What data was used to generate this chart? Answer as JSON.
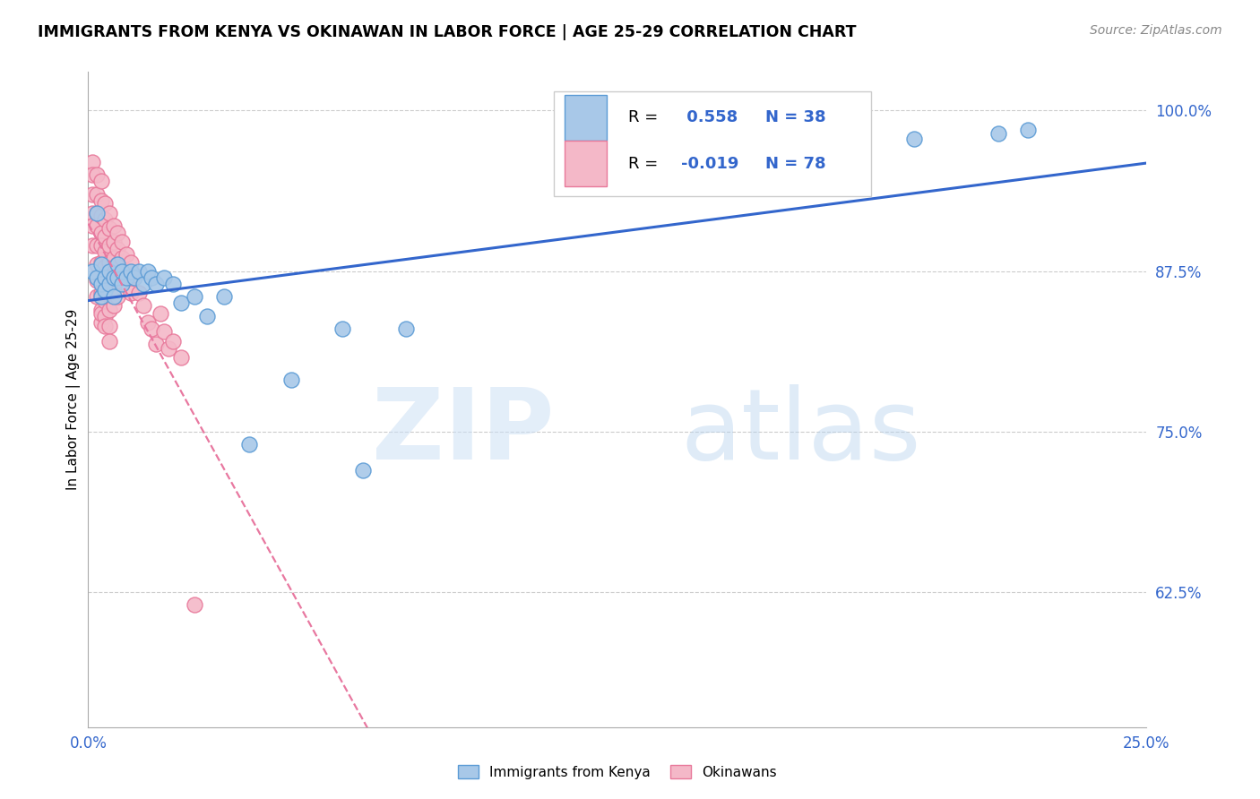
{
  "title": "IMMIGRANTS FROM KENYA VS OKINAWAN IN LABOR FORCE | AGE 25-29 CORRELATION CHART",
  "source": "Source: ZipAtlas.com",
  "ylabel": "In Labor Force | Age 25-29",
  "x_min": 0.0,
  "x_max": 0.25,
  "y_min": 0.52,
  "y_max": 1.03,
  "x_ticks": [
    0.0,
    0.05,
    0.1,
    0.15,
    0.2,
    0.25
  ],
  "x_tick_labels": [
    "0.0%",
    "",
    "",
    "",
    "",
    "25.0%"
  ],
  "y_ticks": [
    0.625,
    0.75,
    0.875,
    1.0
  ],
  "y_tick_labels": [
    "62.5%",
    "75.0%",
    "87.5%",
    "100.0%"
  ],
  "kenya_R": 0.558,
  "kenya_N": 38,
  "okinawa_R": -0.019,
  "okinawa_N": 78,
  "kenya_color": "#a8c8e8",
  "kenya_edge_color": "#5b9bd5",
  "okinawa_color": "#f4b8c8",
  "okinawa_edge_color": "#e8789a",
  "trend_kenya_color": "#3366cc",
  "trend_okinawa_color": "#e878a0",
  "kenya_x": [
    0.001,
    0.002,
    0.002,
    0.003,
    0.003,
    0.003,
    0.004,
    0.004,
    0.005,
    0.005,
    0.006,
    0.006,
    0.007,
    0.007,
    0.008,
    0.008,
    0.009,
    0.01,
    0.011,
    0.012,
    0.013,
    0.014,
    0.015,
    0.016,
    0.018,
    0.02,
    0.022,
    0.025,
    0.028,
    0.032,
    0.038,
    0.048,
    0.06,
    0.065,
    0.075,
    0.195,
    0.215,
    0.222
  ],
  "kenya_y": [
    0.875,
    0.87,
    0.92,
    0.855,
    0.865,
    0.88,
    0.87,
    0.86,
    0.865,
    0.875,
    0.855,
    0.87,
    0.87,
    0.88,
    0.865,
    0.875,
    0.87,
    0.875,
    0.87,
    0.875,
    0.865,
    0.875,
    0.87,
    0.865,
    0.87,
    0.865,
    0.85,
    0.855,
    0.84,
    0.855,
    0.74,
    0.79,
    0.83,
    0.72,
    0.83,
    0.978,
    0.982,
    0.985
  ],
  "okinawa_x": [
    0.001,
    0.001,
    0.001,
    0.001,
    0.001,
    0.001,
    0.002,
    0.002,
    0.002,
    0.002,
    0.002,
    0.002,
    0.002,
    0.002,
    0.003,
    0.003,
    0.003,
    0.003,
    0.003,
    0.003,
    0.003,
    0.003,
    0.003,
    0.003,
    0.003,
    0.003,
    0.003,
    0.004,
    0.004,
    0.004,
    0.004,
    0.004,
    0.004,
    0.004,
    0.004,
    0.004,
    0.004,
    0.004,
    0.005,
    0.005,
    0.005,
    0.005,
    0.005,
    0.005,
    0.005,
    0.005,
    0.005,
    0.006,
    0.006,
    0.006,
    0.006,
    0.006,
    0.006,
    0.007,
    0.007,
    0.007,
    0.007,
    0.007,
    0.008,
    0.008,
    0.008,
    0.009,
    0.009,
    0.01,
    0.01,
    0.01,
    0.011,
    0.012,
    0.013,
    0.014,
    0.015,
    0.016,
    0.017,
    0.018,
    0.019,
    0.02,
    0.022,
    0.025
  ],
  "okinawa_y": [
    0.96,
    0.95,
    0.935,
    0.92,
    0.91,
    0.895,
    0.95,
    0.935,
    0.92,
    0.91,
    0.895,
    0.88,
    0.868,
    0.855,
    0.945,
    0.93,
    0.918,
    0.905,
    0.895,
    0.882,
    0.87,
    0.858,
    0.845,
    0.835,
    0.868,
    0.855,
    0.842,
    0.928,
    0.915,
    0.902,
    0.89,
    0.878,
    0.865,
    0.852,
    0.84,
    0.87,
    0.858,
    0.832,
    0.92,
    0.908,
    0.895,
    0.882,
    0.87,
    0.858,
    0.845,
    0.832,
    0.82,
    0.91,
    0.898,
    0.885,
    0.872,
    0.86,
    0.848,
    0.905,
    0.892,
    0.88,
    0.868,
    0.855,
    0.898,
    0.885,
    0.872,
    0.888,
    0.875,
    0.882,
    0.87,
    0.858,
    0.872,
    0.858,
    0.848,
    0.835,
    0.83,
    0.818,
    0.842,
    0.828,
    0.815,
    0.82,
    0.808,
    0.615
  ]
}
